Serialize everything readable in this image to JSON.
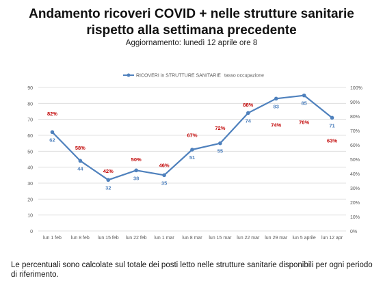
{
  "title_line1": "Andamento ricoveri COVID + nelle strutture sanitarie",
  "title_line2": "rispetto alla settimana precedente",
  "subtitle": "Aggiornamento: lunedì 12 aprile ore 8",
  "footnote": "Le percentuali sono calcolate sul totale dei posti letto nelle strutture sanitarie disponibili per ogni periodo di riferimento.",
  "colors": {
    "line": "#4f81bd",
    "pct": "#c00000",
    "grid": "#d9d9d9",
    "axis_text": "#595959"
  },
  "chart_data": {
    "type": "line",
    "categories": [
      "lun 1 feb",
      "lun 8 feb",
      "lun 15 feb",
      "lun 22 feb",
      "lun 1 mar",
      "lun 8 mar",
      "lun 15 mar",
      "lun 22 mar",
      "lun 29 mar",
      "lun 5 aprile",
      "lun 12 apr"
    ],
    "series": [
      {
        "name": "RICOVERI in STRUTTURE SANITARIE",
        "axis": "left",
        "values": [
          62,
          44,
          32,
          38,
          35,
          51,
          55,
          74,
          83,
          85,
          71
        ]
      },
      {
        "name": "tasso occupazione",
        "axis": "right",
        "labels_only": true,
        "values": [
          82,
          58,
          42,
          50,
          46,
          67,
          72,
          88,
          74,
          76,
          63
        ]
      }
    ],
    "left_axis": {
      "min": 0,
      "max": 90,
      "step": 10
    },
    "right_axis": {
      "min": 0,
      "max": 100,
      "step": 10,
      "suffix": "%"
    },
    "legend_position": "top-center",
    "grid": true
  }
}
